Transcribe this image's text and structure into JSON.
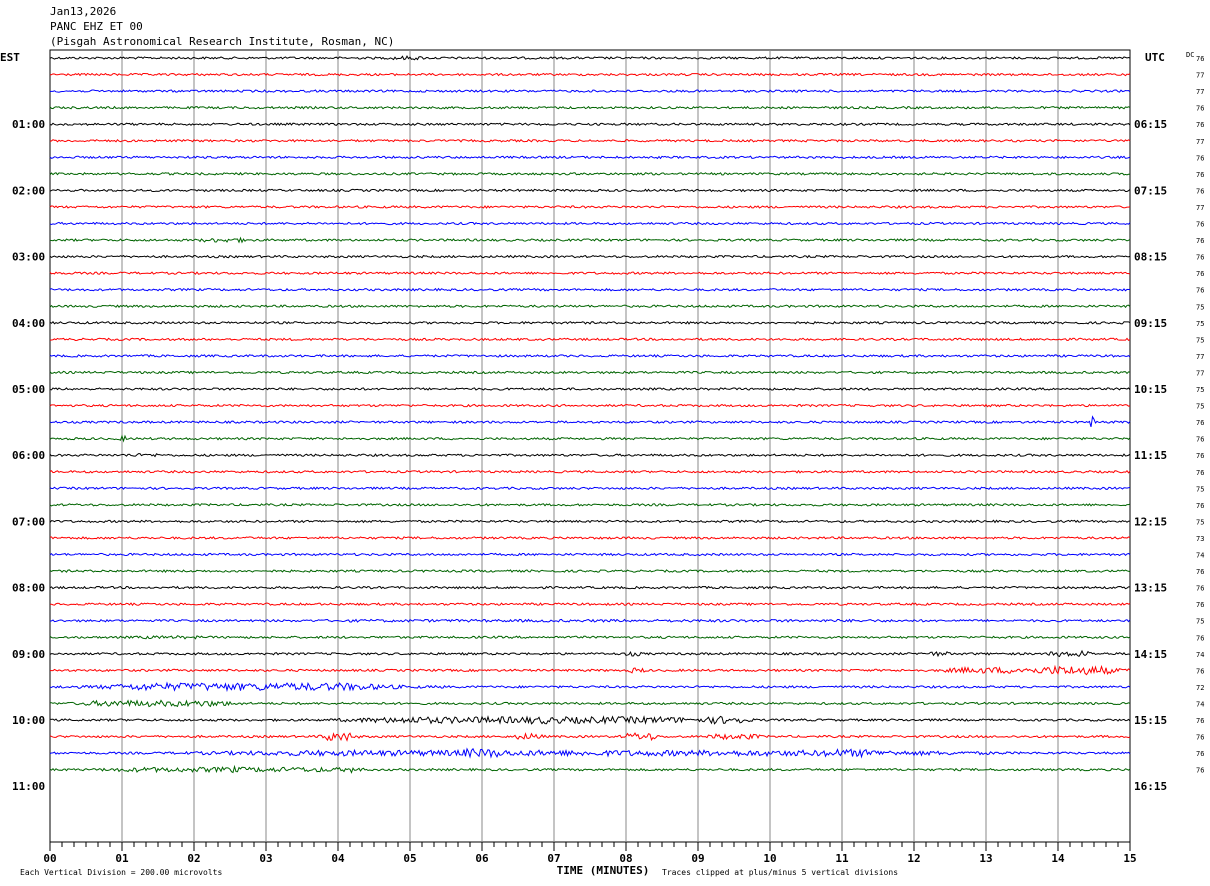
{
  "header": {
    "date": "Jan13,2026",
    "station": "PANC EHZ ET 00",
    "location": "(Pisgah Astronomical Research Institute, Rosman, NC)"
  },
  "chart_data": {
    "type": "line",
    "title": "PANC EHZ ET 00",
    "left_axis_label": "EST",
    "right_axis_label": "UTC",
    "dc_label": "DC",
    "xlabel": "TIME (MINUTES)",
    "xlim": [
      0,
      15
    ],
    "x_tick_labels": [
      "00",
      "01",
      "02",
      "03",
      "04",
      "05",
      "06",
      "07",
      "08",
      "09",
      "10",
      "11",
      "12",
      "13",
      "14",
      "15"
    ],
    "left_time_labels": [
      "01:00",
      "02:00",
      "03:00",
      "04:00",
      "05:00",
      "06:00",
      "07:00",
      "08:00",
      "09:00",
      "10:00",
      "11:00"
    ],
    "right_time_labels": [
      "06:15",
      "07:15",
      "08:15",
      "09:15",
      "10:15",
      "11:15",
      "12:15",
      "13:15",
      "14:15",
      "15:15",
      "16:15"
    ],
    "dc_values": [
      76,
      77,
      77,
      76,
      76,
      77,
      76,
      76,
      76,
      77,
      76,
      76,
      76,
      76,
      76,
      75,
      75,
      75,
      77,
      77,
      75,
      75,
      76,
      76,
      76,
      76,
      75,
      76,
      75,
      73,
      74,
      76,
      76,
      76,
      75,
      76,
      74,
      76,
      72,
      74,
      76,
      76,
      76,
      76
    ],
    "trace_colors": [
      "#000000",
      "#ff0000",
      "#0000ff",
      "#006400"
    ],
    "trace_activity": [
      {
        "trace": 0,
        "events": [
          [
            4.6,
            0.7,
            1.8
          ]
        ]
      },
      {
        "trace": 11,
        "events": [
          [
            1.9,
            1.1,
            2.0
          ]
        ]
      },
      {
        "trace": 22,
        "events": [
          [
            14.45,
            0.08,
            5.0
          ]
        ]
      },
      {
        "trace": 23,
        "events": [
          [
            0.95,
            0.1,
            2.5
          ]
        ]
      },
      {
        "trace": 24,
        "events": [
          [
            0.9,
            0.8,
            1.5
          ]
        ]
      },
      {
        "trace": 34,
        "events": [
          [
            0.5,
            14.5,
            1.2
          ]
        ]
      },
      {
        "trace": 35,
        "events": [
          [
            0.9,
            1.5,
            1.4
          ]
        ]
      },
      {
        "trace": 36,
        "events": [
          [
            7.9,
            0.4,
            2.0
          ],
          [
            12.0,
            0.6,
            2.0
          ],
          [
            13.8,
            0.5,
            2.5
          ],
          [
            14.2,
            0.3,
            3.0
          ]
        ]
      },
      {
        "trace": 37,
        "events": [
          [
            8.0,
            0.3,
            2.5
          ],
          [
            12.0,
            3.0,
            2.8
          ],
          [
            13.5,
            1.5,
            4.0
          ]
        ]
      },
      {
        "trace": 38,
        "events": [
          [
            0.0,
            5.5,
            3.5
          ]
        ]
      },
      {
        "trace": 39,
        "events": [
          [
            0.0,
            3.0,
            2.8
          ]
        ]
      },
      {
        "trace": 40,
        "events": [
          [
            3.2,
            7.0,
            3.0
          ],
          [
            6.5,
            0.6,
            3.5
          ],
          [
            9.0,
            0.8,
            3.5
          ]
        ]
      },
      {
        "trace": 41,
        "events": [
          [
            3.7,
            0.6,
            4.0
          ],
          [
            6.4,
            0.5,
            3.0
          ],
          [
            7.9,
            0.6,
            3.5
          ],
          [
            9.0,
            1.0,
            2.5
          ]
        ]
      },
      {
        "trace": 42,
        "events": [
          [
            0.0,
            15.0,
            2.6
          ],
          [
            5.5,
            1.0,
            4.0
          ],
          [
            10.5,
            1.2,
            3.5
          ]
        ]
      },
      {
        "trace": 43,
        "events": [
          [
            0.0,
            5.0,
            2.2
          ],
          [
            2.4,
            0.3,
            3.0
          ],
          [
            4.0,
            0.4,
            2.8
          ]
        ]
      }
    ],
    "trace_count": 44,
    "traces_per_hour": 4,
    "first_labeled_trace": 4
  },
  "footer": {
    "scale_text": "Each Vertical Division =  200.00 microvolts",
    "clip_text": "Traces clipped at plus/minus 5 vertical divisions"
  }
}
